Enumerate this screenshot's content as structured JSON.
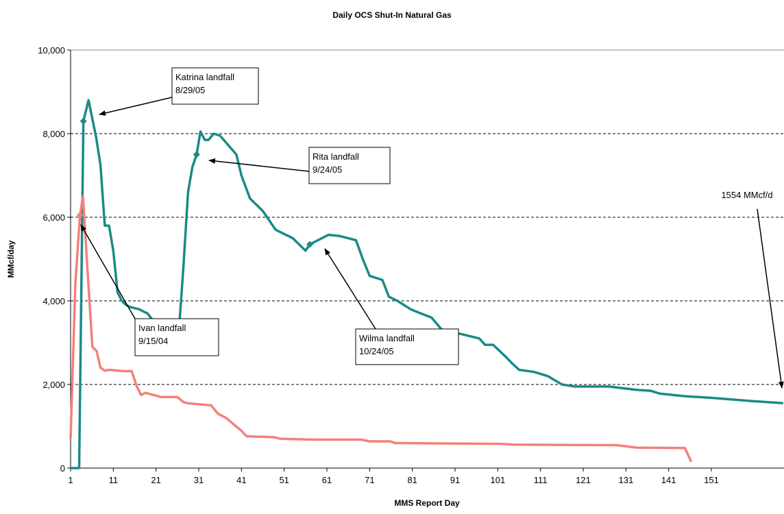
{
  "chart_data": {
    "type": "line",
    "title": "Daily OCS Shut-In Natural Gas",
    "x_label": "MMS Report Day",
    "y_label": "MMcf/day",
    "xlim": [
      1,
      168
    ],
    "xticks": [
      1,
      11,
      21,
      31,
      41,
      51,
      61,
      71,
      81,
      91,
      101,
      111,
      121,
      131,
      141,
      151
    ],
    "ylim": [
      0,
      10000
    ],
    "yticks": [
      0,
      {
        "value": 2000,
        "label": "2,000"
      },
      {
        "value": 4000,
        "label": "4,000"
      },
      {
        "value": 6000,
        "label": "6,000"
      },
      {
        "value": 8000,
        "label": "8,000"
      },
      {
        "value": 10000,
        "label": "10,000"
      }
    ],
    "grid": true,
    "series": [
      {
        "color": "#1a8a86",
        "x": [
          1,
          2,
          3,
          4,
          5.2,
          6,
          7,
          8,
          9,
          10,
          11,
          12,
          13,
          14,
          15,
          17,
          19,
          20.5,
          26.5,
          27.4,
          28.5,
          29.5,
          30.5,
          31.4,
          32.4,
          33.3,
          34.5,
          36,
          39.8,
          41,
          43,
          46,
          49,
          53,
          56,
          57,
          61.4,
          64,
          67.8,
          69.4,
          71,
          74,
          75.5,
          77.5,
          80.6,
          82.5,
          85.5,
          88,
          92.7,
          96.7,
          98,
          99.9,
          103,
          104.4,
          106,
          109.5,
          112.7,
          116,
          119,
          127,
          133.5,
          136.7,
          139,
          144.8,
          151,
          160.8,
          167.8
        ],
        "values": [
          0,
          0,
          0,
          8300,
          8800,
          8400,
          7900,
          7250,
          5800,
          5800,
          5200,
          4200,
          4000,
          3900,
          3850,
          3800,
          3700,
          3500,
          3500,
          4800,
          6600,
          7200,
          7500,
          8050,
          7850,
          7850,
          8000,
          7950,
          7500,
          7000,
          6450,
          6150,
          5700,
          5500,
          5200,
          5350,
          5580,
          5550,
          5450,
          5000,
          4600,
          4500,
          4100,
          4000,
          3800,
          3720,
          3600,
          3300,
          3200,
          3100,
          2950,
          2950,
          2650,
          2500,
          2350,
          2300,
          2200,
          2000,
          1950,
          1950,
          1870,
          1850,
          1780,
          1720,
          1680,
          1600,
          1554
        ]
      },
      {
        "color": "#f4807a",
        "x": [
          1,
          2.1,
          3.2,
          3.9,
          4.8,
          6.1,
          7.1,
          8,
          9,
          10.1,
          13.3,
          15.3,
          16.5,
          17.5,
          18.5,
          22.2,
          26,
          27.4,
          28.5,
          33.9,
          35.5,
          37.4,
          40.9,
          42.2,
          48.6,
          50.2,
          58,
          69,
          71,
          75.8,
          77,
          87,
          101.5,
          104.7,
          128.7,
          133.5,
          144.8,
          146.3
        ],
        "values": [
          700,
          4400,
          6050,
          6500,
          5000,
          2900,
          2800,
          2400,
          2330,
          2350,
          2320,
          2320,
          1950,
          1750,
          1800,
          1700,
          1700,
          1580,
          1550,
          1500,
          1300,
          1200,
          900,
          760,
          740,
          700,
          680,
          680,
          640,
          640,
          600,
          590,
          580,
          560,
          550,
          490,
          480,
          150
        ]
      }
    ],
    "annotations": [
      {
        "lines": [
          "Katrina landfall",
          "8/29/05"
        ],
        "x": 4,
        "y": 8300,
        "series": 0
      },
      {
        "lines": [
          "Rita landfall",
          "9/24/05"
        ],
        "x": 30.5,
        "y": 7500,
        "series": 0
      },
      {
        "lines": [
          "Ivan landfall",
          "9/15/04"
        ],
        "x": 3.2,
        "y": 6050,
        "series": 1
      },
      {
        "lines": [
          "Wilma landfall",
          "10/24/05"
        ],
        "x": 57,
        "y": 5350,
        "series": 0
      },
      {
        "lines": [
          "1554 MMcf/d"
        ]
      }
    ]
  }
}
